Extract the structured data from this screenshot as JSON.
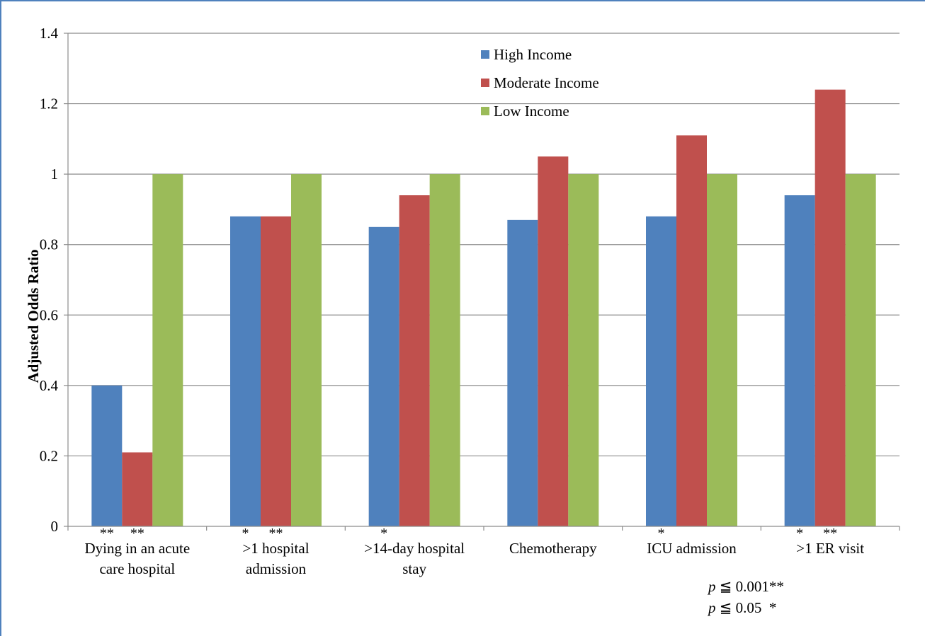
{
  "chart_data": {
    "type": "bar",
    "ylabel": "Adjusted Odds Ratio",
    "xlabel": "",
    "ylim": [
      0,
      1.4
    ],
    "yticks": [
      "0",
      "0.2",
      "0.4",
      "0.6",
      "0.8",
      "1",
      "1.2",
      "1.4"
    ],
    "grid": true,
    "legend_position": "top-center",
    "categories": [
      [
        "Dying in an acute",
        "care hospital"
      ],
      [
        ">1 hospital",
        "admission"
      ],
      [
        ">14-day hospital",
        "stay"
      ],
      [
        "Chemotherapy"
      ],
      [
        "ICU admission"
      ],
      [
        ">1 ER visit"
      ]
    ],
    "series": [
      {
        "name": "High Income",
        "color": "#4f81bd",
        "values": [
          0.4,
          0.88,
          0.85,
          0.87,
          0.88,
          0.94
        ],
        "significance": [
          "**",
          "*",
          "*",
          "",
          "*",
          "*"
        ]
      },
      {
        "name": "Moderate Income",
        "color": "#c0504d",
        "values": [
          0.21,
          0.88,
          0.94,
          1.05,
          1.11,
          1.24
        ],
        "significance": [
          "**",
          "**",
          "",
          "",
          "",
          "**"
        ]
      },
      {
        "name": "Low Income",
        "color": "#9bbb59",
        "values": [
          1.0,
          1.0,
          1.0,
          1.0,
          1.0,
          1.0
        ],
        "significance": [
          "",
          "",
          "",
          "",
          "",
          ""
        ]
      }
    ],
    "notes": [
      {
        "p": "p",
        "text": " ≦ 0.001**"
      },
      {
        "p": "p",
        "text": " ≦ 0.05  *"
      }
    ]
  }
}
